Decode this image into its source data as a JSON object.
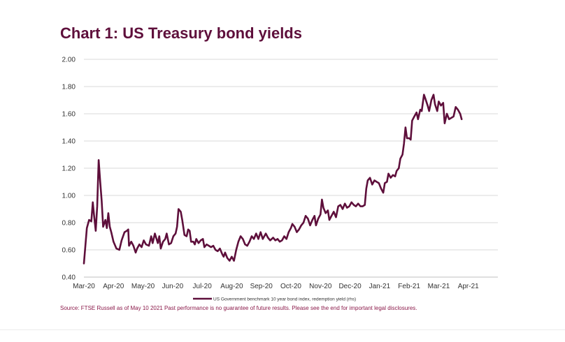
{
  "title": "Chart 1: US Treasury bond yields",
  "source_note": "Source: FTSE Russell as of May 10 2021 Past performance is no guarantee of future results. Please see the end for important legal disclosures.",
  "colors": {
    "title": "#5e0f3b",
    "line": "#5e0f3b",
    "grid": "#d9d9d9",
    "source": "#8b1a4a"
  },
  "chart_data": {
    "type": "line",
    "title": "Chart 1: US Treasury bond yields",
    "xlabel": "",
    "ylabel": "",
    "ylim": [
      0.4,
      2.0
    ],
    "y_ticks": [
      "2.00",
      "1.80",
      "1.60",
      "1.40",
      "1.20",
      "1.00",
      "0.80",
      "0.60",
      "0.40"
    ],
    "x_ticks": [
      "Mar-20",
      "Apr-20",
      "May-20",
      "Jun-20",
      "Jul-20",
      "Aug-20",
      "Sep-20",
      "Oct-20",
      "Nov-20",
      "Dec-20",
      "Jan-21",
      "Feb-21",
      "Mar-21",
      "Apr-21"
    ],
    "grid": true,
    "legend_position": "bottom",
    "series": [
      {
        "name": "US Government benchmark 10 year bond index, redemption yield (rhs)",
        "points": [
          [
            0,
            0.5
          ],
          [
            0.2,
            0.76
          ],
          [
            0.35,
            0.82
          ],
          [
            0.5,
            0.81
          ],
          [
            0.6,
            0.95
          ],
          [
            0.7,
            0.84
          ],
          [
            0.8,
            0.74
          ],
          [
            0.9,
            0.92
          ],
          [
            1.0,
            1.26
          ],
          [
            1.1,
            1.1
          ],
          [
            1.2,
            0.96
          ],
          [
            1.3,
            0.77
          ],
          [
            1.45,
            0.82
          ],
          [
            1.55,
            0.76
          ],
          [
            1.65,
            0.87
          ],
          [
            1.75,
            0.77
          ],
          [
            1.85,
            0.73
          ],
          [
            2.0,
            0.66
          ],
          [
            2.2,
            0.61
          ],
          [
            2.4,
            0.6
          ],
          [
            2.55,
            0.67
          ],
          [
            2.75,
            0.73
          ],
          [
            2.9,
            0.74
          ],
          [
            3.0,
            0.75
          ],
          [
            3.05,
            0.63
          ],
          [
            3.2,
            0.66
          ],
          [
            3.35,
            0.63
          ],
          [
            3.5,
            0.58
          ],
          [
            3.6,
            0.61
          ],
          [
            3.75,
            0.64
          ],
          [
            3.9,
            0.62
          ],
          [
            4.05,
            0.67
          ],
          [
            4.2,
            0.64
          ],
          [
            4.4,
            0.63
          ],
          [
            4.55,
            0.7
          ],
          [
            4.65,
            0.65
          ],
          [
            4.8,
            0.72
          ],
          [
            5.0,
            0.65
          ],
          [
            5.1,
            0.7
          ],
          [
            5.2,
            0.61
          ],
          [
            5.35,
            0.66
          ],
          [
            5.5,
            0.68
          ],
          [
            5.6,
            0.72
          ],
          [
            5.75,
            0.64
          ],
          [
            5.9,
            0.65
          ],
          [
            6.05,
            0.7
          ],
          [
            6.2,
            0.72
          ],
          [
            6.3,
            0.77
          ],
          [
            6.4,
            0.9
          ],
          [
            6.55,
            0.88
          ],
          [
            6.65,
            0.82
          ],
          [
            6.8,
            0.71
          ],
          [
            6.95,
            0.7
          ],
          [
            7.05,
            0.75
          ],
          [
            7.15,
            0.74
          ],
          [
            7.25,
            0.66
          ],
          [
            7.4,
            0.66
          ],
          [
            7.5,
            0.64
          ],
          [
            7.6,
            0.68
          ],
          [
            7.75,
            0.65
          ],
          [
            7.9,
            0.67
          ],
          [
            8.05,
            0.68
          ],
          [
            8.15,
            0.62
          ],
          [
            8.3,
            0.64
          ],
          [
            8.45,
            0.63
          ],
          [
            8.6,
            0.62
          ],
          [
            8.75,
            0.63
          ],
          [
            8.9,
            0.6
          ],
          [
            9.05,
            0.59
          ],
          [
            9.2,
            0.61
          ],
          [
            9.35,
            0.57
          ],
          [
            9.45,
            0.55
          ],
          [
            9.55,
            0.58
          ],
          [
            9.7,
            0.54
          ],
          [
            9.85,
            0.52
          ],
          [
            10.0,
            0.55
          ],
          [
            10.15,
            0.52
          ],
          [
            10.3,
            0.6
          ],
          [
            10.45,
            0.66
          ],
          [
            10.6,
            0.7
          ],
          [
            10.75,
            0.68
          ],
          [
            10.9,
            0.64
          ],
          [
            11.05,
            0.63
          ],
          [
            11.2,
            0.66
          ],
          [
            11.35,
            0.7
          ],
          [
            11.5,
            0.68
          ],
          [
            11.65,
            0.72
          ],
          [
            11.8,
            0.68
          ],
          [
            11.95,
            0.73
          ],
          [
            12.1,
            0.68
          ],
          [
            12.3,
            0.72
          ],
          [
            12.45,
            0.69
          ],
          [
            12.6,
            0.67
          ],
          [
            12.8,
            0.69
          ],
          [
            12.95,
            0.67
          ],
          [
            13.1,
            0.68
          ],
          [
            13.25,
            0.66
          ],
          [
            13.4,
            0.67
          ],
          [
            13.55,
            0.7
          ],
          [
            13.7,
            0.68
          ],
          [
            13.85,
            0.73
          ],
          [
            14.0,
            0.76
          ],
          [
            14.1,
            0.79
          ],
          [
            14.25,
            0.77
          ],
          [
            14.4,
            0.73
          ],
          [
            14.55,
            0.75
          ],
          [
            14.7,
            0.78
          ],
          [
            14.85,
            0.8
          ],
          [
            15.0,
            0.85
          ],
          [
            15.15,
            0.83
          ],
          [
            15.3,
            0.78
          ],
          [
            15.45,
            0.82
          ],
          [
            15.6,
            0.85
          ],
          [
            15.7,
            0.78
          ],
          [
            15.85,
            0.83
          ],
          [
            16.0,
            0.86
          ],
          [
            16.1,
            0.97
          ],
          [
            16.2,
            0.91
          ],
          [
            16.35,
            0.87
          ],
          [
            16.5,
            0.89
          ],
          [
            16.6,
            0.82
          ],
          [
            16.75,
            0.85
          ],
          [
            16.9,
            0.88
          ],
          [
            17.05,
            0.84
          ],
          [
            17.2,
            0.92
          ],
          [
            17.35,
            0.93
          ],
          [
            17.5,
            0.9
          ],
          [
            17.65,
            0.94
          ],
          [
            17.8,
            0.91
          ],
          [
            17.95,
            0.92
          ],
          [
            18.1,
            0.95
          ],
          [
            18.25,
            0.93
          ],
          [
            18.4,
            0.92
          ],
          [
            18.55,
            0.94
          ],
          [
            18.7,
            0.92
          ],
          [
            18.85,
            0.92
          ],
          [
            19.0,
            0.93
          ],
          [
            19.1,
            1.05
          ],
          [
            19.2,
            1.11
          ],
          [
            19.35,
            1.13
          ],
          [
            19.5,
            1.08
          ],
          [
            19.65,
            1.11
          ],
          [
            19.8,
            1.1
          ],
          [
            19.95,
            1.09
          ],
          [
            20.1,
            1.05
          ],
          [
            20.25,
            1.02
          ],
          [
            20.35,
            1.09
          ],
          [
            20.5,
            1.1
          ],
          [
            20.6,
            1.16
          ],
          [
            20.75,
            1.13
          ],
          [
            20.9,
            1.15
          ],
          [
            21.05,
            1.14
          ],
          [
            21.15,
            1.18
          ],
          [
            21.3,
            1.2
          ],
          [
            21.4,
            1.27
          ],
          [
            21.55,
            1.3
          ],
          [
            21.65,
            1.38
          ],
          [
            21.75,
            1.5
          ],
          [
            21.85,
            1.42
          ],
          [
            22.0,
            1.42
          ],
          [
            22.1,
            1.41
          ],
          [
            22.2,
            1.55
          ],
          [
            22.35,
            1.58
          ],
          [
            22.5,
            1.61
          ],
          [
            22.6,
            1.56
          ],
          [
            22.75,
            1.63
          ],
          [
            22.85,
            1.62
          ],
          [
            23.0,
            1.74
          ],
          [
            23.1,
            1.71
          ],
          [
            23.25,
            1.66
          ],
          [
            23.35,
            1.62
          ],
          [
            23.5,
            1.7
          ],
          [
            23.65,
            1.74
          ],
          [
            23.75,
            1.67
          ],
          [
            23.9,
            1.62
          ],
          [
            24.0,
            1.69
          ],
          [
            24.15,
            1.66
          ],
          [
            24.3,
            1.68
          ],
          [
            24.4,
            1.53
          ],
          [
            24.55,
            1.6
          ],
          [
            24.7,
            1.56
          ],
          [
            24.85,
            1.57
          ],
          [
            25.0,
            1.58
          ],
          [
            25.15,
            1.65
          ],
          [
            25.3,
            1.63
          ],
          [
            25.45,
            1.6
          ],
          [
            25.55,
            1.56
          ]
        ]
      }
    ]
  }
}
